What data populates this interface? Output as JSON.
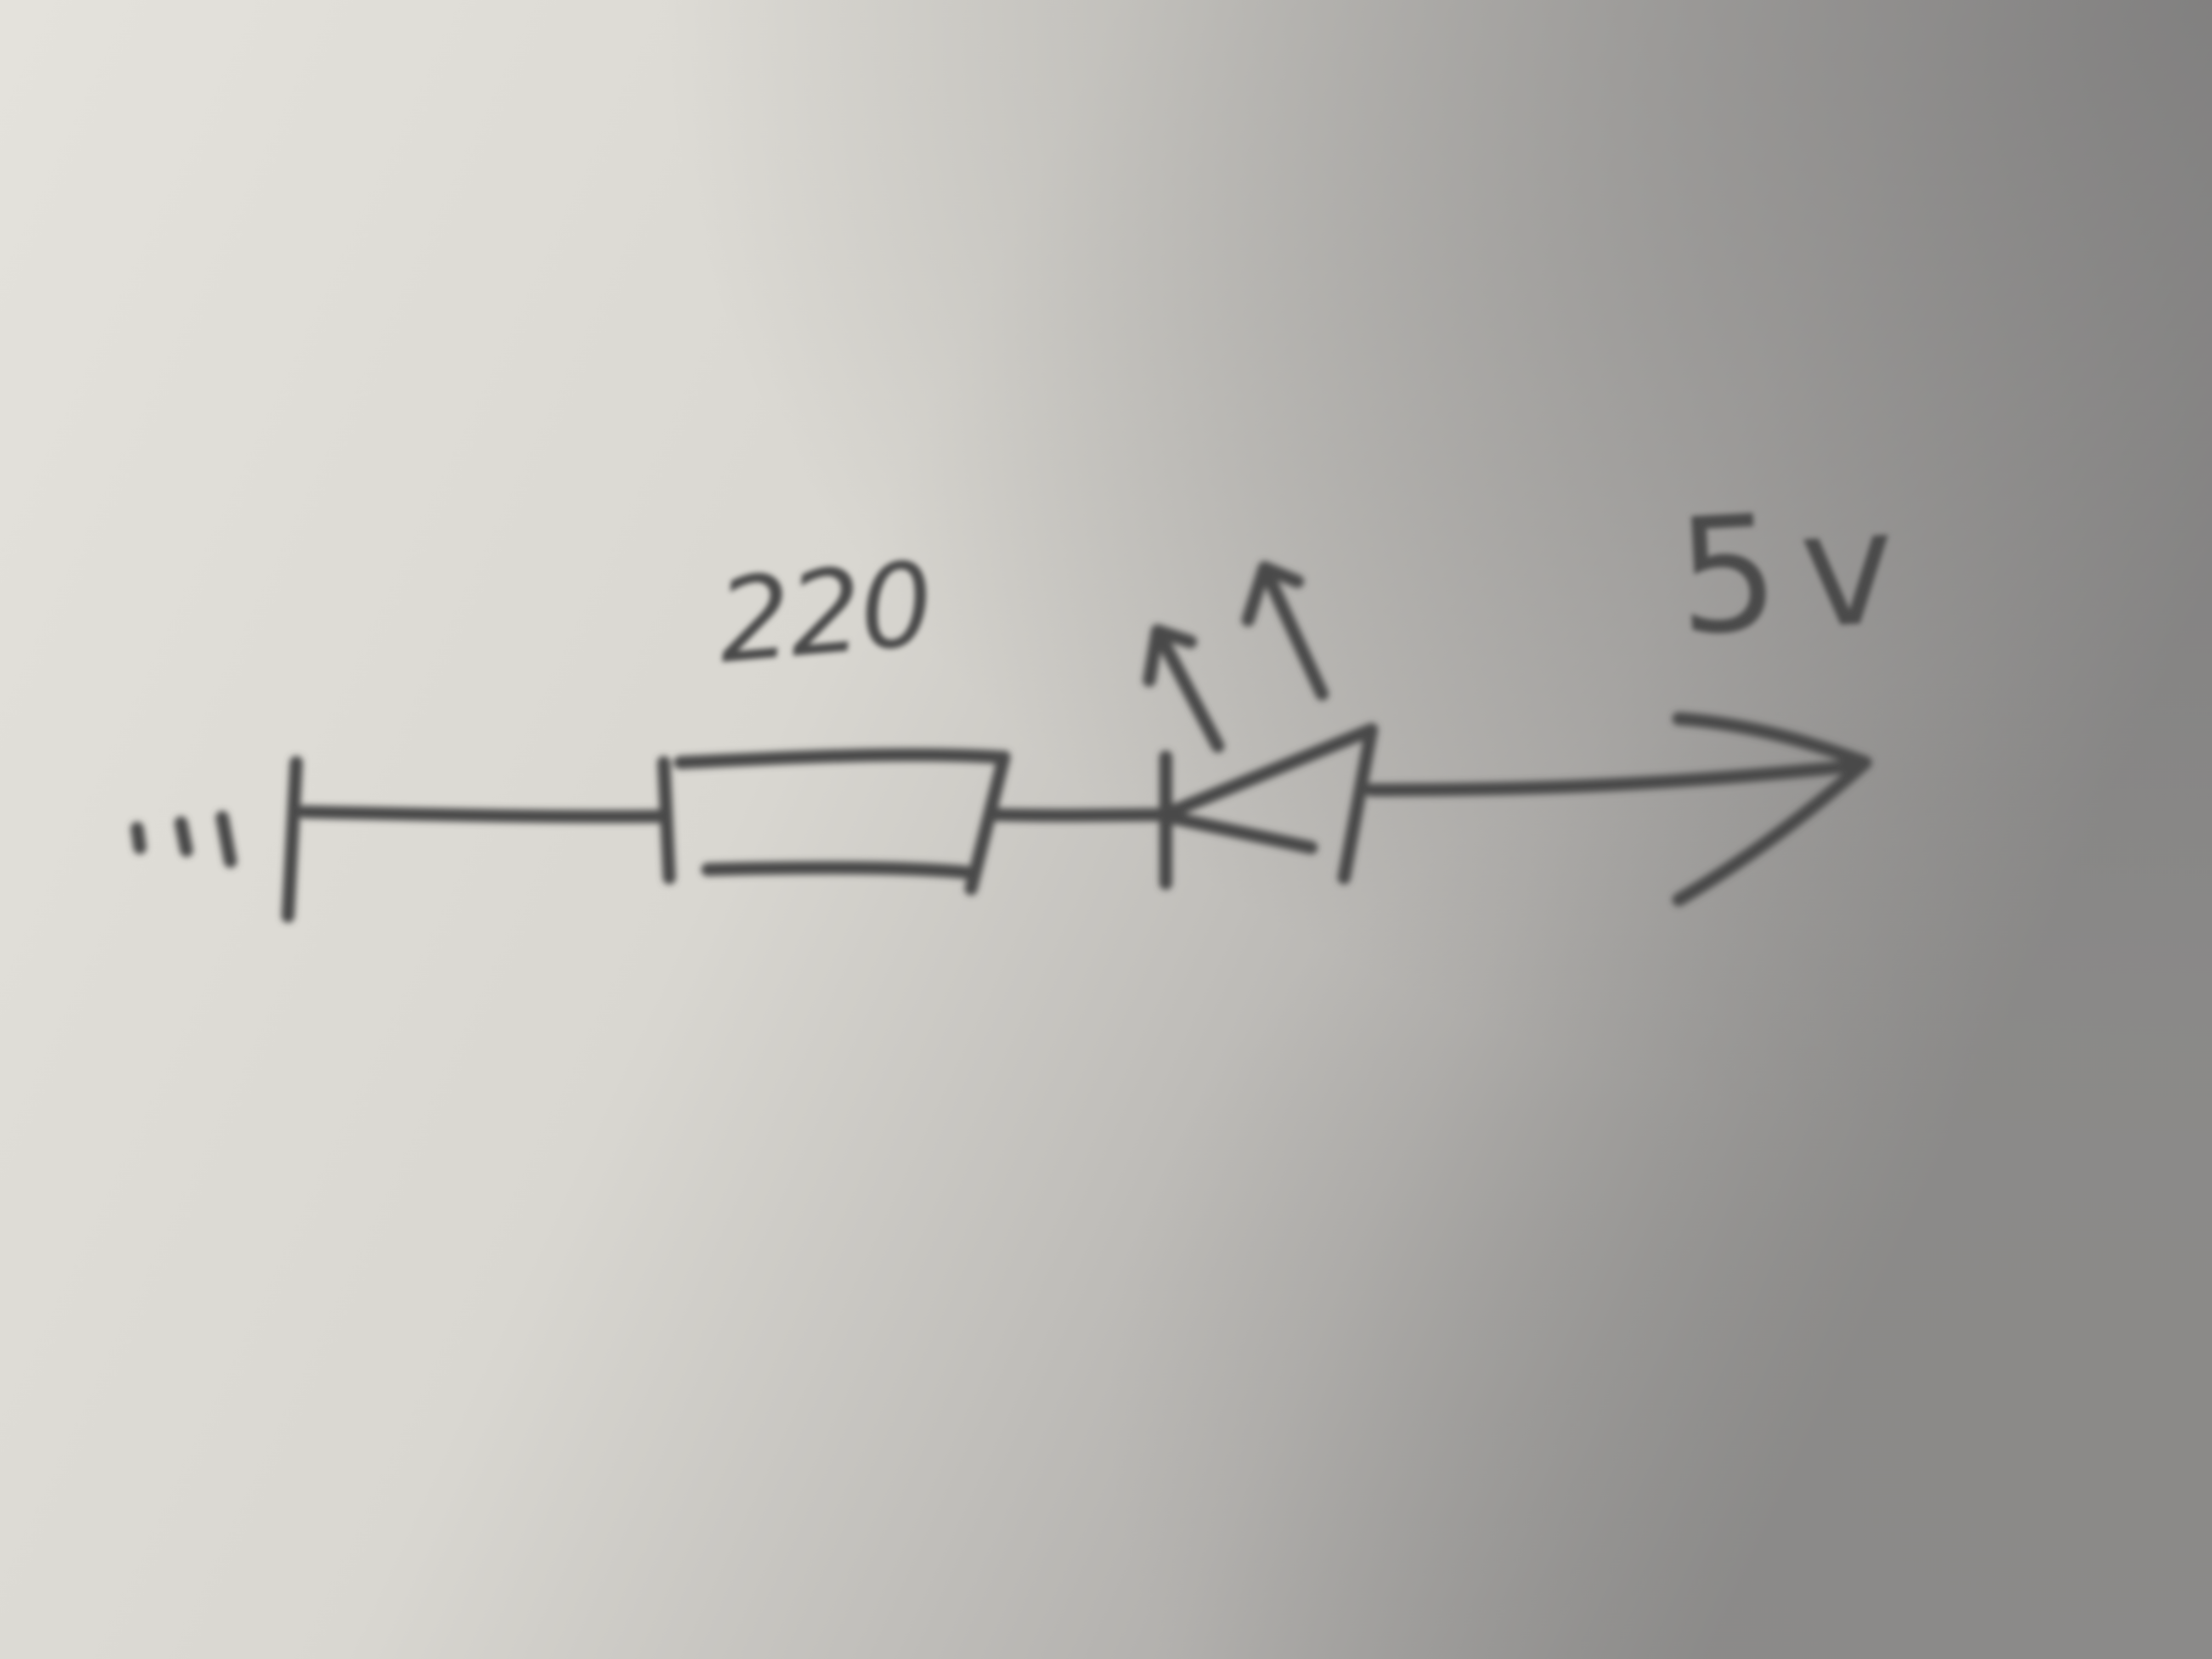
{
  "diagram": {
    "resistor_value": "220",
    "supply_voltage": "5v"
  },
  "colors": {
    "ink": "#4a4a4a",
    "paper_light": "#e6e4de",
    "paper_dark": "#8e8c8a"
  }
}
